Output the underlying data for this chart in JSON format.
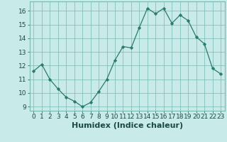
{
  "x": [
    0,
    1,
    2,
    3,
    4,
    5,
    6,
    7,
    8,
    9,
    10,
    11,
    12,
    13,
    14,
    15,
    16,
    17,
    18,
    19,
    20,
    21,
    22,
    23
  ],
  "y": [
    11.6,
    12.1,
    11.0,
    10.3,
    9.7,
    9.4,
    9.0,
    9.3,
    10.1,
    11.0,
    12.4,
    13.4,
    13.3,
    14.8,
    16.2,
    15.8,
    16.2,
    15.1,
    15.7,
    15.3,
    14.1,
    13.6,
    11.8,
    11.4
  ],
  "line_color": "#2a7a6e",
  "marker": "D",
  "marker_size": 2.2,
  "bg_color": "#c8eae8",
  "grid_color": "#7ab8b3",
  "xlabel": "Humidex (Indice chaleur)",
  "ylim": [
    8.7,
    16.7
  ],
  "xlim": [
    -0.5,
    23.5
  ],
  "yticks": [
    9,
    10,
    11,
    12,
    13,
    14,
    15,
    16
  ],
  "xticks": [
    0,
    1,
    2,
    3,
    4,
    5,
    6,
    7,
    8,
    9,
    10,
    11,
    12,
    13,
    14,
    15,
    16,
    17,
    18,
    19,
    20,
    21,
    22,
    23
  ],
  "xtick_labels": [
    "0",
    "1",
    "2",
    "3",
    "4",
    "5",
    "6",
    "7",
    "8",
    "9",
    "10",
    "11",
    "12",
    "13",
    "14",
    "15",
    "16",
    "17",
    "18",
    "19",
    "20",
    "21",
    "22",
    "23"
  ],
  "tick_fontsize": 6.5,
  "xlabel_fontsize": 8,
  "label_color": "#1a4a44"
}
